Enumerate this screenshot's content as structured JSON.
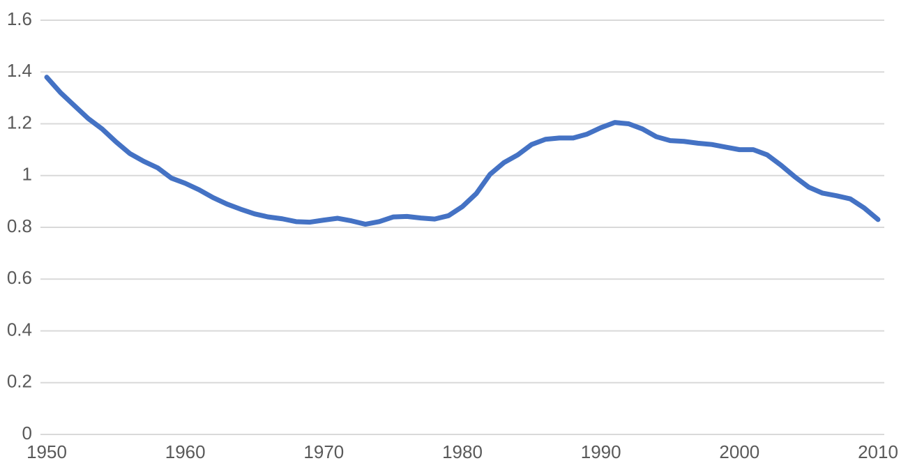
{
  "chart_data": {
    "type": "line",
    "color": "#4472c4",
    "grid": true,
    "x": [
      1950,
      1951,
      1952,
      1953,
      1954,
      1955,
      1956,
      1957,
      1958,
      1959,
      1960,
      1961,
      1962,
      1963,
      1964,
      1965,
      1966,
      1967,
      1968,
      1969,
      1970,
      1971,
      1972,
      1973,
      1974,
      1975,
      1976,
      1977,
      1978,
      1979,
      1980,
      1981,
      1982,
      1983,
      1984,
      1985,
      1986,
      1987,
      1988,
      1989,
      1990,
      1991,
      1992,
      1993,
      1994,
      1995,
      1996,
      1997,
      1998,
      1999,
      2000,
      2001,
      2002,
      2003,
      2004,
      2005,
      2006,
      2007,
      2008,
      2009,
      2010
    ],
    "values": [
      1.38,
      1.32,
      1.27,
      1.22,
      1.18,
      1.13,
      1.085,
      1.055,
      1.03,
      0.99,
      0.97,
      0.945,
      0.915,
      0.89,
      0.87,
      0.852,
      0.84,
      0.833,
      0.822,
      0.82,
      0.828,
      0.835,
      0.825,
      0.812,
      0.822,
      0.84,
      0.842,
      0.836,
      0.832,
      0.845,
      0.88,
      0.93,
      1.005,
      1.05,
      1.08,
      1.12,
      1.14,
      1.145,
      1.145,
      1.16,
      1.185,
      1.205,
      1.2,
      1.18,
      1.15,
      1.135,
      1.132,
      1.125,
      1.12,
      1.11,
      1.1,
      1.1,
      1.08,
      1.04,
      0.995,
      0.955,
      0.932,
      0.922,
      0.91,
      0.875,
      0.83
    ],
    "xlim": [
      1950,
      2010
    ],
    "xticks": [
      1950,
      1960,
      1970,
      1980,
      1990,
      2000,
      2010
    ],
    "ylim": [
      0,
      1.6
    ],
    "yticks": [
      0,
      0.2,
      0.4,
      0.6,
      0.8,
      1,
      1.2,
      1.4,
      1.6
    ]
  }
}
